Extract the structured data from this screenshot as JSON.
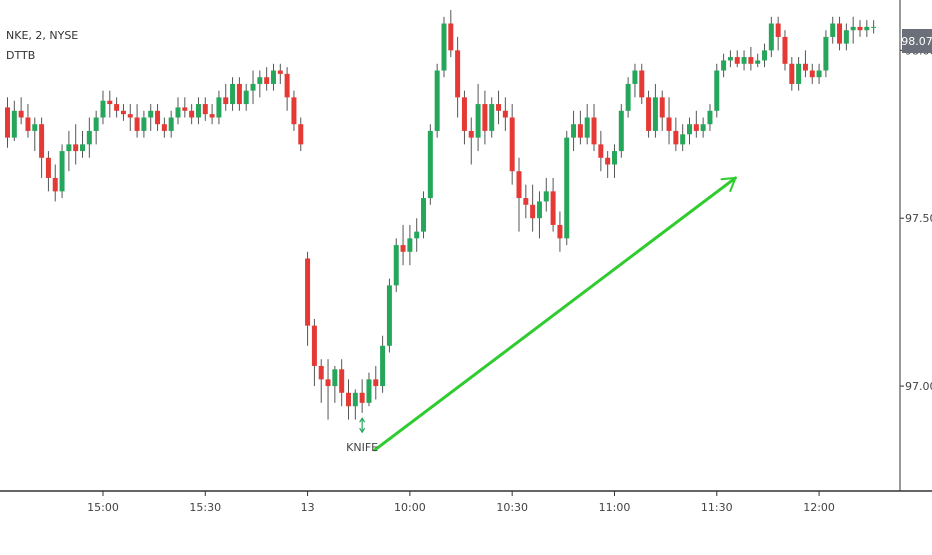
{
  "legend": {
    "symbol_line": "NKE, 2, NYSE",
    "indicator_line": "DTTB"
  },
  "last_price_tag": "98.07",
  "colors": {
    "up": "#26a65b",
    "down": "#e53935",
    "wick": "#555555",
    "arrow": "#2ecc2e",
    "axis": "#333333",
    "price_tag_bg": "#6b6f7a"
  },
  "annotation": {
    "label": "KNIFE",
    "icon": "double-arrow-icon"
  },
  "chart_data": {
    "type": "candlestick",
    "title": "",
    "xlabel": "",
    "ylabel": "",
    "ylim": [
      96.75,
      98.15
    ],
    "y_ticks": [
      {
        "value": 98.0,
        "label": "98.00"
      },
      {
        "value": 97.5,
        "label": "97.50"
      },
      {
        "value": 97.0,
        "label": "97.00"
      }
    ],
    "x_ticks": [
      {
        "index": 14,
        "label": "15:00"
      },
      {
        "index": 29,
        "label": "15:30"
      },
      {
        "index": 44,
        "label": "13"
      },
      {
        "index": 59,
        "label": "10:00"
      },
      {
        "index": 74,
        "label": "10:30"
      },
      {
        "index": 89,
        "label": "11:00"
      },
      {
        "index": 104,
        "label": "11:30"
      },
      {
        "index": 119,
        "label": "12:00"
      }
    ],
    "candle_count": 128,
    "ohlc": [
      [
        97.83,
        97.86,
        97.71,
        97.74
      ],
      [
        97.74,
        97.85,
        97.73,
        97.82
      ],
      [
        97.82,
        97.86,
        97.78,
        97.8
      ],
      [
        97.8,
        97.84,
        97.74,
        97.76
      ],
      [
        97.76,
        97.8,
        97.7,
        97.78
      ],
      [
        97.78,
        97.8,
        97.62,
        97.68
      ],
      [
        97.68,
        97.7,
        97.58,
        97.62
      ],
      [
        97.62,
        97.66,
        97.55,
        97.58
      ],
      [
        97.58,
        97.72,
        97.56,
        97.7
      ],
      [
        97.7,
        97.76,
        97.64,
        97.72
      ],
      [
        97.72,
        97.78,
        97.66,
        97.7
      ],
      [
        97.7,
        97.76,
        97.68,
        97.72
      ],
      [
        97.72,
        97.8,
        97.68,
        97.76
      ],
      [
        97.76,
        97.82,
        97.72,
        97.8
      ],
      [
        97.8,
        97.88,
        97.78,
        97.85
      ],
      [
        97.85,
        97.88,
        97.8,
        97.84
      ],
      [
        97.84,
        97.86,
        97.8,
        97.82
      ],
      [
        97.82,
        97.84,
        97.79,
        97.81
      ],
      [
        97.81,
        97.84,
        97.76,
        97.8
      ],
      [
        97.8,
        97.84,
        97.74,
        97.76
      ],
      [
        97.76,
        97.82,
        97.74,
        97.8
      ],
      [
        97.8,
        97.84,
        97.76,
        97.82
      ],
      [
        97.82,
        97.84,
        97.76,
        97.78
      ],
      [
        97.78,
        97.8,
        97.74,
        97.76
      ],
      [
        97.76,
        97.82,
        97.74,
        97.8
      ],
      [
        97.8,
        97.86,
        97.78,
        97.83
      ],
      [
        97.83,
        97.86,
        97.8,
        97.82
      ],
      [
        97.82,
        97.84,
        97.78,
        97.8
      ],
      [
        97.8,
        97.86,
        97.78,
        97.84
      ],
      [
        97.84,
        97.86,
        97.79,
        97.81
      ],
      [
        97.81,
        97.84,
        97.78,
        97.8
      ],
      [
        97.8,
        97.88,
        97.78,
        97.86
      ],
      [
        97.86,
        97.9,
        97.82,
        97.84
      ],
      [
        97.84,
        97.92,
        97.82,
        97.9
      ],
      [
        97.9,
        97.92,
        97.82,
        97.84
      ],
      [
        97.84,
        97.9,
        97.82,
        97.88
      ],
      [
        97.88,
        97.94,
        97.84,
        97.9
      ],
      [
        97.9,
        97.94,
        97.86,
        97.92
      ],
      [
        97.92,
        97.95,
        97.88,
        97.9
      ],
      [
        97.9,
        97.96,
        97.88,
        97.94
      ],
      [
        97.94,
        97.96,
        97.9,
        97.93
      ],
      [
        97.93,
        97.95,
        97.82,
        97.86
      ],
      [
        97.86,
        97.88,
        97.76,
        97.78
      ],
      [
        97.78,
        97.8,
        97.7,
        97.72
      ],
      [
        97.38,
        97.4,
        97.12,
        97.18
      ],
      [
        97.18,
        97.2,
        97.0,
        97.06
      ],
      [
        97.06,
        97.08,
        96.95,
        97.02
      ],
      [
        97.02,
        97.08,
        96.9,
        97.0
      ],
      [
        97.0,
        97.06,
        96.95,
        97.05
      ],
      [
        97.05,
        97.08,
        96.94,
        96.98
      ],
      [
        96.98,
        97.02,
        96.9,
        96.94
      ],
      [
        96.94,
        96.99,
        96.9,
        96.98
      ],
      [
        96.98,
        97.02,
        96.92,
        96.95
      ],
      [
        96.95,
        97.04,
        96.94,
        97.02
      ],
      [
        97.02,
        97.06,
        96.96,
        97.0
      ],
      [
        97.0,
        97.15,
        96.98,
        97.12
      ],
      [
        97.12,
        97.32,
        97.1,
        97.3
      ],
      [
        97.3,
        97.44,
        97.28,
        97.42
      ],
      [
        97.42,
        97.48,
        97.36,
        97.4
      ],
      [
        97.4,
        97.48,
        97.36,
        97.44
      ],
      [
        97.44,
        97.5,
        97.4,
        97.46
      ],
      [
        97.46,
        97.58,
        97.44,
        97.56
      ],
      [
        97.56,
        97.78,
        97.54,
        97.76
      ],
      [
        97.76,
        97.96,
        97.74,
        97.94
      ],
      [
        97.94,
        98.1,
        97.92,
        98.08
      ],
      [
        98.08,
        98.12,
        97.98,
        98.0
      ],
      [
        98.0,
        98.04,
        97.8,
        97.86
      ],
      [
        97.86,
        97.88,
        97.72,
        97.76
      ],
      [
        97.76,
        97.8,
        97.66,
        97.74
      ],
      [
        97.74,
        97.9,
        97.7,
        97.84
      ],
      [
        97.84,
        97.88,
        97.72,
        97.76
      ],
      [
        97.76,
        97.86,
        97.74,
        97.84
      ],
      [
        97.84,
        97.88,
        97.78,
        97.82
      ],
      [
        97.82,
        97.86,
        97.76,
        97.8
      ],
      [
        97.8,
        97.84,
        97.6,
        97.64
      ],
      [
        97.64,
        97.68,
        97.46,
        97.56
      ],
      [
        97.56,
        97.6,
        97.5,
        97.54
      ],
      [
        97.54,
        97.6,
        97.46,
        97.5
      ],
      [
        97.5,
        97.58,
        97.44,
        97.55
      ],
      [
        97.55,
        97.62,
        97.52,
        97.58
      ],
      [
        97.58,
        97.62,
        97.46,
        97.48
      ],
      [
        97.48,
        97.52,
        97.4,
        97.44
      ],
      [
        97.44,
        97.76,
        97.42,
        97.74
      ],
      [
        97.74,
        97.82,
        97.7,
        97.78
      ],
      [
        97.78,
        97.82,
        97.72,
        97.74
      ],
      [
        97.74,
        97.84,
        97.72,
        97.8
      ],
      [
        97.8,
        97.84,
        97.7,
        97.72
      ],
      [
        97.72,
        97.76,
        97.64,
        97.68
      ],
      [
        97.68,
        97.7,
        97.62,
        97.66
      ],
      [
        97.66,
        97.72,
        97.62,
        97.7
      ],
      [
        97.7,
        97.84,
        97.68,
        97.82
      ],
      [
        97.82,
        97.92,
        97.8,
        97.9
      ],
      [
        97.9,
        97.96,
        97.86,
        97.94
      ],
      [
        97.94,
        97.96,
        97.84,
        97.86
      ],
      [
        97.86,
        97.88,
        97.74,
        97.76
      ],
      [
        97.76,
        97.9,
        97.74,
        97.86
      ],
      [
        97.86,
        97.88,
        97.76,
        97.8
      ],
      [
        97.8,
        97.86,
        97.72,
        97.76
      ],
      [
        97.76,
        97.8,
        97.7,
        97.72
      ],
      [
        97.72,
        97.78,
        97.7,
        97.75
      ],
      [
        97.75,
        97.8,
        97.72,
        97.78
      ],
      [
        97.78,
        97.82,
        97.74,
        97.76
      ],
      [
        97.76,
        97.8,
        97.74,
        97.78
      ],
      [
        97.78,
        97.84,
        97.76,
        97.82
      ],
      [
        97.82,
        97.96,
        97.8,
        97.94
      ],
      [
        97.94,
        97.99,
        97.92,
        97.97
      ],
      [
        97.97,
        98.0,
        97.95,
        97.98
      ],
      [
        97.98,
        98.0,
        97.95,
        97.96
      ],
      [
        97.96,
        98.0,
        97.94,
        97.98
      ],
      [
        97.98,
        98.01,
        97.94,
        97.96
      ],
      [
        97.96,
        97.99,
        97.95,
        97.97
      ],
      [
        97.97,
        98.02,
        97.95,
        98.0
      ],
      [
        98.0,
        98.1,
        97.98,
        98.08
      ],
      [
        98.08,
        98.1,
        98.0,
        98.04
      ],
      [
        98.04,
        98.06,
        97.94,
        97.96
      ],
      [
        97.96,
        97.98,
        97.88,
        97.9
      ],
      [
        97.9,
        97.98,
        97.88,
        97.96
      ],
      [
        97.96,
        98.0,
        97.92,
        97.94
      ],
      [
        97.94,
        97.96,
        97.9,
        97.92
      ],
      [
        97.92,
        97.96,
        97.9,
        97.94
      ],
      [
        97.94,
        98.06,
        97.92,
        98.04
      ],
      [
        98.04,
        98.1,
        98.02,
        98.08
      ],
      [
        98.08,
        98.1,
        98.0,
        98.02
      ],
      [
        98.02,
        98.08,
        98.0,
        98.06
      ],
      [
        98.06,
        98.1,
        98.02,
        98.07
      ],
      [
        98.07,
        98.09,
        98.04,
        98.06
      ],
      [
        98.06,
        98.09,
        98.04,
        98.07
      ],
      [
        98.07,
        98.09,
        98.05,
        98.07
      ]
    ],
    "annotations": [
      {
        "type": "arrow",
        "label": "",
        "from": {
          "index": 53,
          "price": 96.81
        },
        "to": {
          "index": 106,
          "price": 97.62
        }
      },
      {
        "type": "text",
        "label": "KNIFE",
        "at": {
          "index": 52,
          "price": 96.82
        }
      }
    ]
  }
}
